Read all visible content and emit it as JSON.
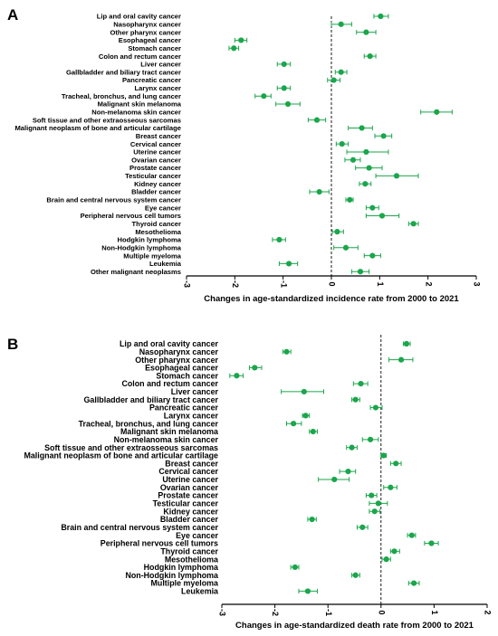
{
  "colors": {
    "marker": "#1aa64b",
    "axis": "#000000",
    "zero_line": "#000000"
  },
  "chart_data": [
    {
      "panel": "A",
      "type": "scatter",
      "subtype": "forest-plot",
      "xlabel": "Changes in age-standardized incidence rate from 2000 to 2021",
      "xlim": [
        -3,
        3
      ],
      "xticks": [
        -3,
        -2,
        -1,
        0,
        1,
        2,
        3
      ],
      "zero_reference_line": "dashed",
      "grid": false,
      "categories": [
        "Lip and oral cavity cancer",
        "Nasopharynx cancer",
        "Other pharynx cancer",
        "Esophageal cancer",
        "Stomach cancer",
        "Colon and rectum cancer",
        "Liver cancer",
        "Gallbladder and biliary tract cancer",
        "Pancreatic cancer",
        "Larynx cancer",
        "Tracheal, bronchus, and lung cancer",
        "Malignant skin melanoma",
        "Non-melanoma skin cancer",
        "Soft tissue and other extraosseous sarcomas",
        "Malignant neoplasm of bone and articular cartilage",
        "Breast cancer",
        "Cervical cancer",
        "Uterine cancer",
        "Ovarian cancer",
        "Prostate cancer",
        "Testicular cancer",
        "Kidney cancer",
        "Bladder cancer",
        "Brain and central nervous system cancer",
        "Eye cancer",
        "Peripheral nervous cell tumors",
        "Thyroid cancer",
        "Mesothelioma",
        "Hodgkin lymphoma",
        "Non-Hodgkin lymphoma",
        "Multiple myeloma",
        "Leukemia",
        "Other malignant neoplasms"
      ],
      "values": [
        1.02,
        0.2,
        0.72,
        -1.87,
        -2.02,
        0.8,
        -0.98,
        0.2,
        0.05,
        -0.98,
        -1.4,
        -0.9,
        2.18,
        -0.3,
        0.63,
        1.08,
        0.22,
        0.72,
        0.45,
        0.78,
        1.35,
        0.7,
        -0.25,
        0.38,
        0.85,
        1.05,
        1.7,
        0.12,
        -1.08,
        0.3,
        0.85,
        -0.88,
        0.6
      ],
      "ci_low": [
        0.88,
        0.0,
        0.52,
        -2.0,
        -2.12,
        0.68,
        -1.12,
        0.08,
        -0.08,
        -1.12,
        -1.58,
        -1.15,
        1.85,
        -0.48,
        0.35,
        0.9,
        0.1,
        0.32,
        0.28,
        0.5,
        0.92,
        0.58,
        -0.45,
        0.3,
        0.72,
        0.72,
        1.6,
        0.02,
        -1.22,
        0.05,
        0.68,
        -1.08,
        0.42
      ],
      "ci_high": [
        1.18,
        0.42,
        0.92,
        -1.75,
        -1.92,
        0.92,
        -0.85,
        0.32,
        0.18,
        -0.85,
        -1.25,
        -0.65,
        2.5,
        -0.12,
        0.85,
        1.25,
        0.35,
        1.18,
        0.6,
        1.05,
        1.8,
        0.82,
        -0.05,
        0.45,
        0.98,
        1.4,
        1.8,
        0.25,
        -0.95,
        0.55,
        1.02,
        -0.7,
        0.78
      ]
    },
    {
      "panel": "B",
      "type": "scatter",
      "subtype": "forest-plot",
      "xlabel": "Changes in age-standardized death rate from 2000 to 2021",
      "xlim": [
        -3,
        2
      ],
      "xticks": [
        -3,
        -2,
        -1,
        0,
        1,
        2
      ],
      "zero_reference_line": "dashed",
      "grid": false,
      "categories": [
        "Lip and oral cavity cancer",
        "Nasopharynx cancer",
        "Other pharynx cancer",
        "Esophageal cancer",
        "Stomach cancer",
        "Colon and rectum cancer",
        "Liver cancer",
        "Gallbladder and biliary tract cancer",
        "Pancreatic cancer",
        "Larynx cancer",
        "Tracheal, bronchus, and lung cancer",
        "Malignant skin melanoma",
        "Non-melanoma skin cancer",
        "Soft tissue and other extraosseous sarcomas",
        "Malignant neoplasm of bone and articular cartilage",
        "Breast cancer",
        "Cervical cancer",
        "Uterine cancer",
        "Ovarian cancer",
        "Prostate cancer",
        "Testicular cancer",
        "Kidney cancer",
        "Bladder cancer",
        "Brain and central nervous system cancer",
        "Eye cancer",
        "Peripheral nervous cell tumors",
        "Thyroid cancer",
        "Mesothelioma",
        "Hodgkin lymphoma",
        "Non-Hodgkin lymphoma",
        "Multiple myeloma",
        "Leukemia"
      ],
      "values": [
        0.48,
        -1.78,
        0.38,
        -2.38,
        -2.72,
        -0.38,
        -1.45,
        -0.48,
        -0.1,
        -1.42,
        -1.65,
        -1.28,
        -0.2,
        -0.55,
        0.05,
        0.28,
        -0.62,
        -0.88,
        0.18,
        -0.18,
        -0.05,
        -0.12,
        -1.3,
        -0.35,
        0.58,
        0.95,
        0.25,
        0.1,
        -1.62,
        -0.48,
        0.62,
        -1.38
      ],
      "ci_low": [
        0.42,
        -1.85,
        0.15,
        -2.48,
        -2.85,
        -0.52,
        -1.88,
        -0.55,
        -0.2,
        -1.48,
        -1.78,
        -1.35,
        -0.35,
        -0.65,
        0.0,
        0.18,
        -0.78,
        -1.18,
        0.05,
        -0.28,
        -0.22,
        -0.22,
        -1.38,
        -0.45,
        0.5,
        0.82,
        0.18,
        0.02,
        -1.7,
        -0.55,
        0.52,
        -1.55
      ],
      "ci_high": [
        0.55,
        -1.7,
        0.6,
        -2.25,
        -2.6,
        -0.25,
        -1.08,
        -0.4,
        0.02,
        -1.35,
        -1.5,
        -1.2,
        -0.05,
        -0.45,
        0.1,
        0.38,
        -0.48,
        -0.6,
        0.3,
        -0.08,
        0.12,
        -0.02,
        -1.22,
        -0.25,
        0.65,
        1.08,
        0.35,
        0.18,
        -1.55,
        -0.4,
        0.72,
        -1.2
      ]
    }
  ]
}
